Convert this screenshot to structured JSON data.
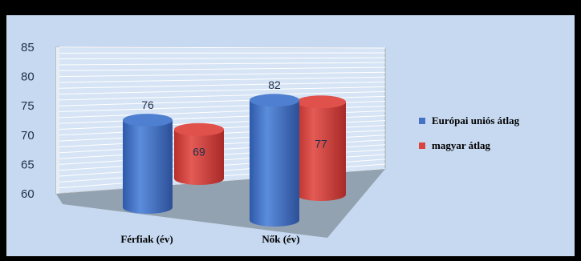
{
  "chart_data": {
    "type": "bar",
    "style": "3d-cylinder",
    "categories": [
      "Férfiak (év)",
      "Nők (év)"
    ],
    "series": [
      {
        "name": "Európai uniós átlag",
        "color": "#4472c4",
        "values": [
          76,
          82
        ]
      },
      {
        "name": "magyar átlag",
        "color": "#d9443f",
        "values": [
          69,
          77
        ]
      }
    ],
    "ylim": [
      60,
      85
    ],
    "yticks": [
      60,
      65,
      70,
      75,
      80,
      85
    ],
    "grid": true,
    "legend": "right"
  }
}
